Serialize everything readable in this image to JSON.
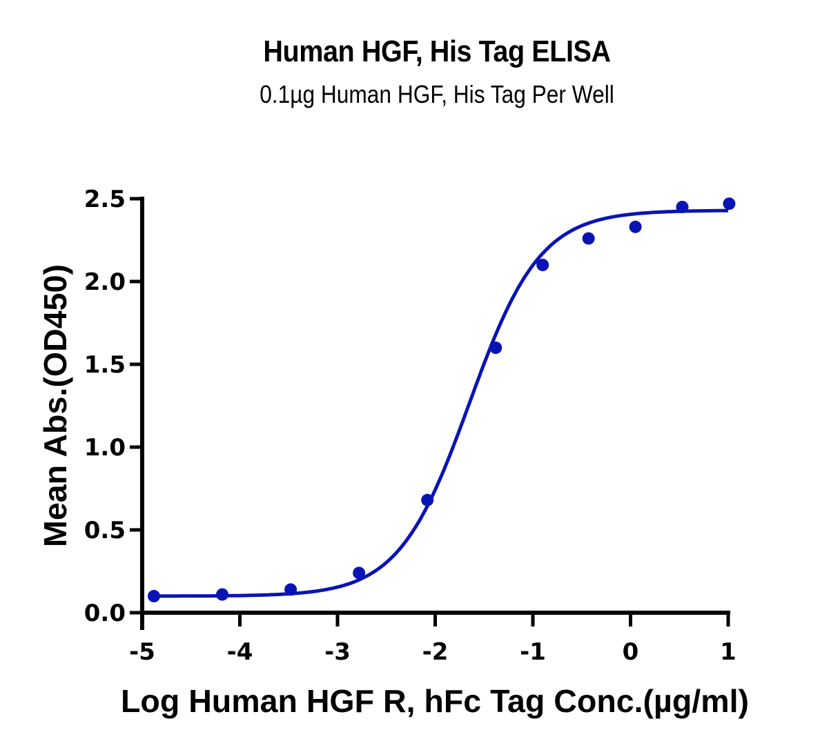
{
  "chart_data": {
    "type": "line",
    "title": "Human HGF, His Tag ELISA",
    "subtitle": "0.1µg Human HGF, His Tag Per Well",
    "xlabel": "Log Human HGF R, hFc Tag Conc.(µg/ml)",
    "ylabel": "Mean Abs.(OD450)",
    "xlim": [
      -5,
      1
    ],
    "ylim": [
      0,
      2.5
    ],
    "x_ticks": [
      -5,
      -4,
      -3,
      -2,
      -1,
      0,
      1
    ],
    "x_tick_labels": [
      "-5",
      "-4",
      "-3",
      "-2",
      "-1",
      "0",
      "1"
    ],
    "y_ticks": [
      0,
      0.5,
      1.0,
      1.5,
      2.0,
      2.5
    ],
    "y_tick_labels": [
      "0.0",
      "0.5",
      "1.0",
      "1.5",
      "2.0",
      "2.5"
    ],
    "grid": false,
    "legend": null,
    "series": [
      {
        "name": "Human HGF R, hFc Tag",
        "color": "#0a14b4",
        "marker": "circle",
        "x": [
          -4.88,
          -4.18,
          -3.48,
          -2.78,
          -2.08,
          -1.38,
          -0.9,
          -0.43,
          0.05,
          0.53,
          1.01
        ],
        "values": [
          0.1,
          0.11,
          0.14,
          0.24,
          0.68,
          1.6,
          2.1,
          2.26,
          2.33,
          2.45,
          2.47
        ]
      }
    ],
    "fit": {
      "model": "4PL sigmoid",
      "bottom": 0.1,
      "top": 2.43,
      "log_ec50": -1.65,
      "hill": 1.2,
      "x_range": [
        -4.88,
        1.0
      ]
    }
  }
}
